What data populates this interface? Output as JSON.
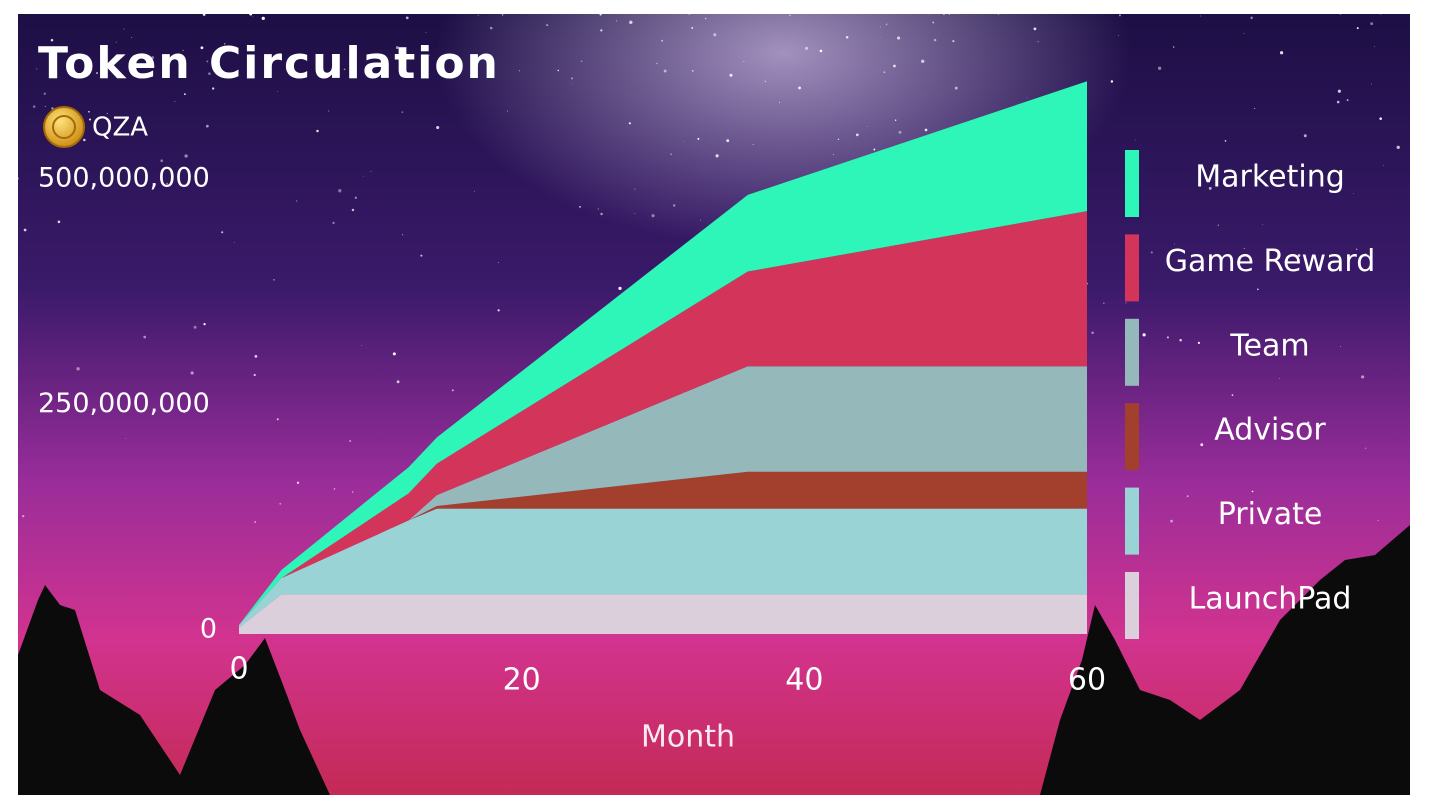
{
  "chart_data": {
    "type": "stacked_area",
    "title": "Token Circulation",
    "subtitle": "QZA",
    "x_label": "Month",
    "x": [
      0,
      3,
      12,
      14,
      36,
      60
    ],
    "xlim": [
      0,
      60
    ],
    "xticks": [
      0,
      20,
      40,
      60
    ],
    "ylim": [
      0,
      600000000
    ],
    "yticks": [
      0,
      {
        "value": 250000000,
        "label": "250,000,000"
      },
      {
        "value": 500000000,
        "label": "500,000,000"
      }
    ],
    "series": [
      {
        "name": "Marketing",
        "color": "#2ef5b8",
        "values": [
          0,
          9000000,
          29000000,
          29000000,
          85000000,
          144000000
        ]
      },
      {
        "name": "Game Reward",
        "color": "#d3355a",
        "values": [
          0,
          0,
          30000000,
          35000000,
          105000000,
          172000000
        ]
      },
      {
        "name": "Team",
        "color": "#95b8bb",
        "values": [
          0,
          0,
          0,
          12000000,
          117000000,
          117000000
        ]
      },
      {
        "name": "Advisor",
        "color": "#a3402d",
        "values": [
          0,
          0,
          0,
          3000000,
          41000000,
          41000000
        ]
      },
      {
        "name": "Private",
        "color": "#9ad3d5",
        "values": [
          3000000,
          18000000,
          82000000,
          95000000,
          95000000,
          95000000
        ]
      },
      {
        "name": "LaunchPad",
        "color": "#dccfdc",
        "values": [
          7000000,
          44000000,
          44000000,
          44000000,
          44000000,
          44000000
        ]
      }
    ]
  }
}
